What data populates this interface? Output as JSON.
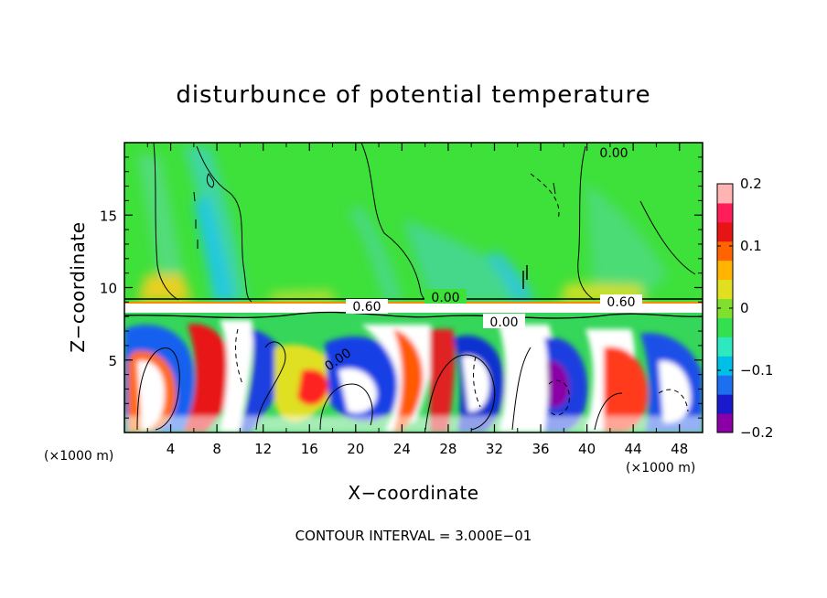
{
  "chart_data": {
    "type": "heatmap",
    "title": "disturbunce of potential temperature",
    "xlabel": "X−coordinate",
    "ylabel": "Z−coordinate",
    "x_unit": "(×1000 m)",
    "x_unit_right": "(×1000 m)",
    "xlim": [
      0,
      50
    ],
    "ylim": [
      0,
      20
    ],
    "x_ticks": [
      4,
      8,
      12,
      16,
      20,
      24,
      28,
      32,
      36,
      40,
      44,
      48
    ],
    "x_tick_labels": [
      "4",
      "8",
      "12",
      "16",
      "20",
      "24",
      "28",
      "32",
      "36",
      "40",
      "44",
      "48"
    ],
    "y_ticks": [
      5,
      10,
      15
    ],
    "y_tick_labels": [
      "5",
      "10",
      "15"
    ],
    "colorbar": {
      "range": [
        -0.2,
        0.2
      ],
      "ticks": [
        0.2,
        0.1,
        0,
        -0.1,
        -0.2
      ],
      "tick_labels": [
        "0.2",
        "0.1",
        "0",
        "−0.1",
        "−0.2"
      ],
      "colors": [
        "#8a00a6",
        "#1a1acc",
        "#1e6ef0",
        "#00bfe6",
        "#2ee8c0",
        "#32e050",
        "#7fe02e",
        "#e0e020",
        "#ffb400",
        "#ff6400",
        "#e61414",
        "#ff1e5a",
        "#ffb4b4"
      ],
      "placement": "right"
    },
    "contour_labels": [
      {
        "text": "0.00",
        "x": 36.5,
        "y": 19.1
      },
      {
        "text": "0.60",
        "x": 17.2,
        "y": 8.6
      },
      {
        "text": "0.00",
        "x": 24.0,
        "y": 9.0
      },
      {
        "text": "0.60",
        "x": 42.8,
        "y": 8.8
      },
      {
        "text": "0.00",
        "x": 29.5,
        "y": 7.6
      },
      {
        "text": "0.00",
        "x": 18.5,
        "y": 5.6
      }
    ],
    "contour_interval_text": "CONTOUR INTERVAL = 3.000E−01"
  }
}
